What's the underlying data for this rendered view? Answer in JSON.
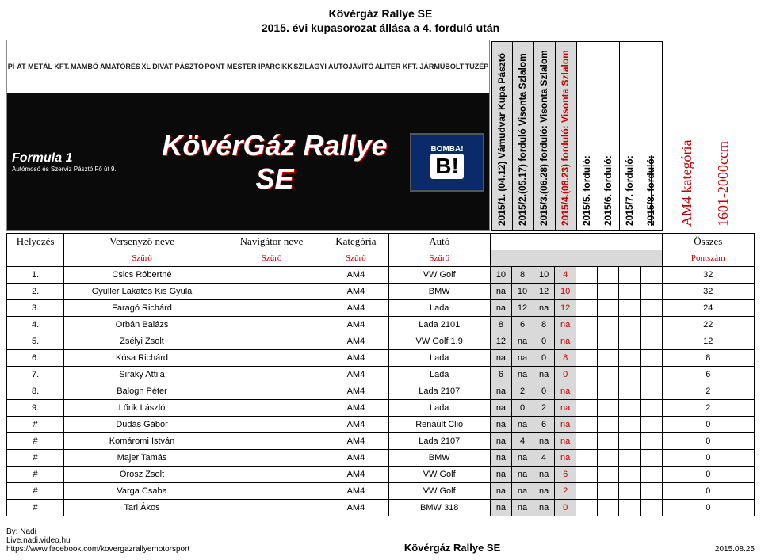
{
  "title": {
    "line1": "Kövérgáz Rallye SE",
    "line2": "2015. évi kupasorozat állása a 4. forduló után"
  },
  "banner": {
    "sponsors": [
      "PI-AT METÁL KFT.",
      "MAMBÓ AMATŐRÉS",
      "XL DIVAT PÁSZTÓ",
      "PONT MESTER IPARCIKK",
      "SZILÁGYI AUTÓJAVÍTÓ",
      "ALITER KFT. JÁRMŰBOLT",
      "TÜZÉP"
    ],
    "f1_label": "Formula 1",
    "f1_sub": "Autómosó és Szervíz Pásztó Fő út 9.",
    "main_logo": "KövérGáz Rallye SE",
    "bomba_top": "BOMBA!",
    "bomba_b": "B!"
  },
  "round_headers": [
    {
      "text": "2015/1. (04.12) Vámudvar Kupa Pásztó",
      "shaded": true,
      "red": false,
      "strike": false
    },
    {
      "text": "2015/2.(05.17) forduló Visonta Szlalom",
      "shaded": true,
      "red": false,
      "strike": false
    },
    {
      "text": "2015/3.(06.28) forduló: Visonta Szlalom",
      "shaded": true,
      "red": false,
      "strike": false
    },
    {
      "text": "2015/4.(08.23) forduló: Visonta Szlalom",
      "shaded": true,
      "red": true,
      "strike": false
    },
    {
      "text": "2015/5. forduló:",
      "shaded": false,
      "red": false,
      "strike": false
    },
    {
      "text": "2015/6. forduló:",
      "shaded": false,
      "red": false,
      "strike": false
    },
    {
      "text": "2015/7. forduló:",
      "shaded": false,
      "red": false,
      "strike": false
    },
    {
      "text": "2015/8. forduló:",
      "shaded": false,
      "red": false,
      "strike": true
    }
  ],
  "category_header": {
    "line1": "AM4 kategória",
    "line2": "1601-2000ccm"
  },
  "columns": {
    "place": "Helyezés",
    "driver": "Versenyző neve",
    "navigator": "Navigátor neve",
    "category": "Kategória",
    "car": "Autó",
    "total": "Összes"
  },
  "filter_row": {
    "label": "Szűrő",
    "total_label": "Pontszám"
  },
  "rows": [
    {
      "place": "1.",
      "driver": "Csics Róbertné",
      "navigator": "",
      "category": "AM4",
      "car": "VW Golf",
      "r": [
        "10",
        "8",
        "10",
        "4"
      ],
      "total": "32"
    },
    {
      "place": "2.",
      "driver": "Gyuller Lakatos Kis Gyula",
      "navigator": "",
      "category": "AM4",
      "car": "BMW",
      "r": [
        "na",
        "10",
        "12",
        "10"
      ],
      "total": "32"
    },
    {
      "place": "3.",
      "driver": "Faragó Richárd",
      "navigator": "",
      "category": "AM4",
      "car": "Lada",
      "r": [
        "na",
        "12",
        "na",
        "12"
      ],
      "total": "24"
    },
    {
      "place": "4.",
      "driver": "Orbán Balázs",
      "navigator": "",
      "category": "AM4",
      "car": "Lada 2101",
      "r": [
        "8",
        "6",
        "8",
        "na"
      ],
      "total": "22"
    },
    {
      "place": "5.",
      "driver": "Zsélyi Zsolt",
      "navigator": "",
      "category": "AM4",
      "car": "VW Golf 1.9",
      "r": [
        "12",
        "na",
        "0",
        "na"
      ],
      "total": "12"
    },
    {
      "place": "6.",
      "driver": "Kósa Richárd",
      "navigator": "",
      "category": "AM4",
      "car": "Lada",
      "r": [
        "na",
        "na",
        "0",
        "8"
      ],
      "total": "8"
    },
    {
      "place": "7.",
      "driver": "Siraky Attila",
      "navigator": "",
      "category": "AM4",
      "car": "Lada",
      "r": [
        "6",
        "na",
        "na",
        "0"
      ],
      "total": "6"
    },
    {
      "place": "8.",
      "driver": "Balogh Péter",
      "navigator": "",
      "category": "AM4",
      "car": "Lada 2107",
      "r": [
        "na",
        "2",
        "0",
        "na"
      ],
      "total": "2"
    },
    {
      "place": "9.",
      "driver": "Lőrik László",
      "navigator": "",
      "category": "AM4",
      "car": "Lada",
      "r": [
        "na",
        "0",
        "2",
        "na"
      ],
      "total": "2"
    },
    {
      "place": "#",
      "driver": "Dudás Gábor",
      "navigator": "",
      "category": "AM4",
      "car": "Renault Clio",
      "r": [
        "na",
        "na",
        "6",
        "na"
      ],
      "total": "0"
    },
    {
      "place": "#",
      "driver": "Komáromi István",
      "navigator": "",
      "category": "AM4",
      "car": "Lada 2107",
      "r": [
        "na",
        "4",
        "na",
        "na"
      ],
      "total": "0"
    },
    {
      "place": "#",
      "driver": "Majer Tamás",
      "navigator": "",
      "category": "AM4",
      "car": "BMW",
      "r": [
        "na",
        "na",
        "4",
        "na"
      ],
      "total": "0"
    },
    {
      "place": "#",
      "driver": "Orosz Zsolt",
      "navigator": "",
      "category": "AM4",
      "car": "VW Golf",
      "r": [
        "na",
        "na",
        "na",
        "6"
      ],
      "total": "0"
    },
    {
      "place": "#",
      "driver": "Varga Csaba",
      "navigator": "",
      "category": "AM4",
      "car": "VW Golf",
      "r": [
        "na",
        "na",
        "na",
        "2"
      ],
      "total": "0"
    },
    {
      "place": "#",
      "driver": "Tari Ákos",
      "navigator": "",
      "category": "AM4",
      "car": "BMW 318",
      "r": [
        "na",
        "na",
        "na",
        "0"
      ],
      "total": "0"
    }
  ],
  "footer": {
    "by": "By: Nadi",
    "live": "Live.nadi.video.hu",
    "fb": "https://www.facebook.com/kovergazrallyemotorsport",
    "center": "Kövérgáz Rallye SE",
    "date": "2015.08.25"
  },
  "col_widths": {
    "place": 72,
    "driver": 196,
    "navigator": 130,
    "category": 82,
    "car": 128,
    "round": 27,
    "total": 116
  },
  "colors": {
    "shaded": "#d9d9d9",
    "accent_red": "#c00000"
  }
}
